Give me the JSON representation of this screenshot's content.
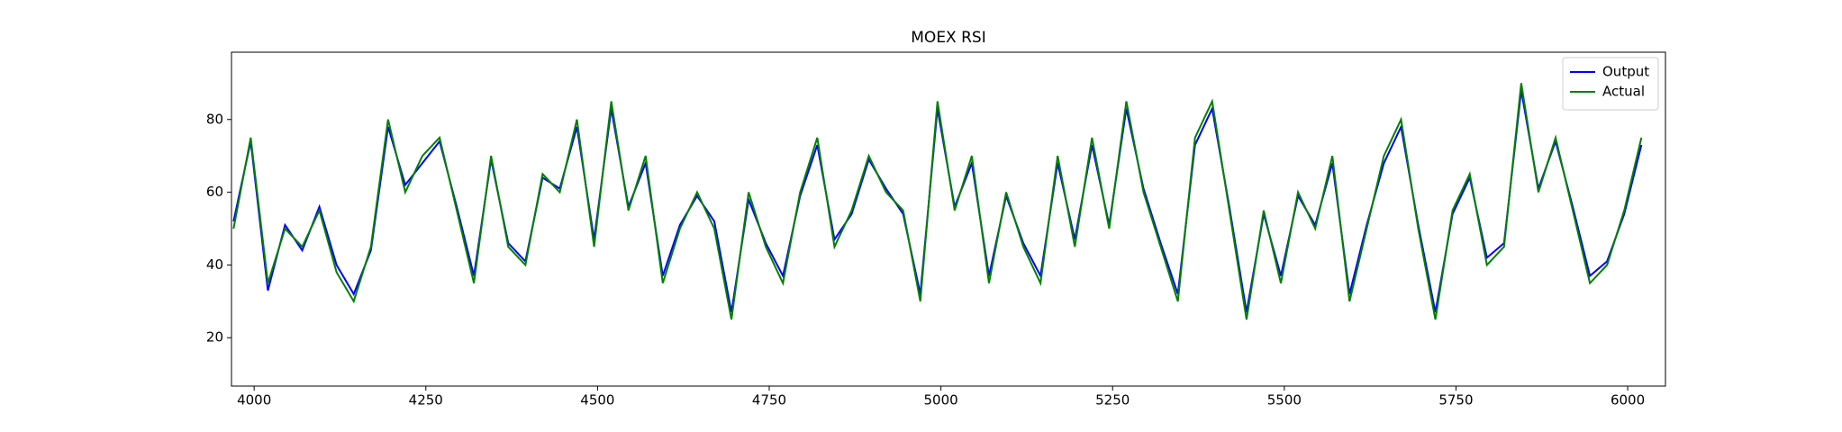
{
  "chart_data": {
    "type": "line",
    "title": "MOEX RSI",
    "x": [
      3970,
      3995,
      4020,
      4045,
      4070,
      4095,
      4120,
      4145,
      4170,
      4195,
      4220,
      4245,
      4270,
      4295,
      4320,
      4345,
      4370,
      4395,
      4420,
      4445,
      4470,
      4495,
      4520,
      4545,
      4570,
      4595,
      4620,
      4645,
      4670,
      4695,
      4720,
      4745,
      4770,
      4795,
      4820,
      4845,
      4870,
      4895,
      4920,
      4945,
      4970,
      4995,
      5020,
      5045,
      5070,
      5095,
      5120,
      5145,
      5170,
      5195,
      5220,
      5245,
      5270,
      5295,
      5320,
      5345,
      5370,
      5395,
      5420,
      5445,
      5470,
      5495,
      5520,
      5545,
      5570,
      5595,
      5620,
      5645,
      5670,
      5695,
      5720,
      5745,
      5770,
      5795,
      5820,
      5845,
      5870,
      5895,
      5920,
      5945,
      5970,
      5995,
      6020
    ],
    "series": [
      {
        "name": "Output",
        "color": "#0000ff",
        "values": [
          52,
          74,
          33,
          51,
          44,
          56,
          40,
          32,
          44,
          78,
          62,
          68,
          74,
          56,
          37,
          69,
          46,
          41,
          64,
          61,
          78,
          47,
          83,
          56,
          68,
          37,
          51,
          59,
          52,
          27,
          58,
          46,
          37,
          59,
          73,
          47,
          54,
          69,
          61,
          54,
          32,
          83,
          56,
          68,
          37,
          59,
          46,
          37,
          68,
          47,
          73,
          51,
          83,
          61,
          46,
          32,
          73,
          83,
          56,
          27,
          54,
          37,
          59,
          51,
          68,
          32,
          51,
          68,
          78,
          51,
          27,
          54,
          64,
          42,
          46,
          88,
          61,
          74,
          56,
          37,
          41,
          54,
          73
        ]
      },
      {
        "name": "Actual",
        "color": "#008000",
        "values": [
          50,
          75,
          35,
          50,
          45,
          55,
          38,
          30,
          45,
          80,
          60,
          70,
          75,
          55,
          35,
          70,
          45,
          40,
          65,
          60,
          80,
          45,
          85,
          55,
          70,
          35,
          50,
          60,
          50,
          25,
          60,
          45,
          35,
          60,
          75,
          45,
          55,
          70,
          60,
          55,
          30,
          85,
          55,
          70,
          35,
          60,
          45,
          35,
          70,
          45,
          75,
          50,
          85,
          60,
          45,
          30,
          75,
          85,
          55,
          25,
          55,
          35,
          60,
          50,
          70,
          30,
          50,
          70,
          80,
          50,
          25,
          55,
          65,
          40,
          45,
          90,
          60,
          75,
          55,
          35,
          40,
          55,
          75
        ]
      }
    ],
    "xlim": [
      3967,
      6055
    ],
    "ylim": [
      6.7,
      98.5
    ],
    "xticks": [
      4000,
      4250,
      4500,
      4750,
      5000,
      5250,
      5500,
      5750,
      6000
    ],
    "yticks": [
      20,
      40,
      60,
      80
    ],
    "legend": "upper right"
  }
}
